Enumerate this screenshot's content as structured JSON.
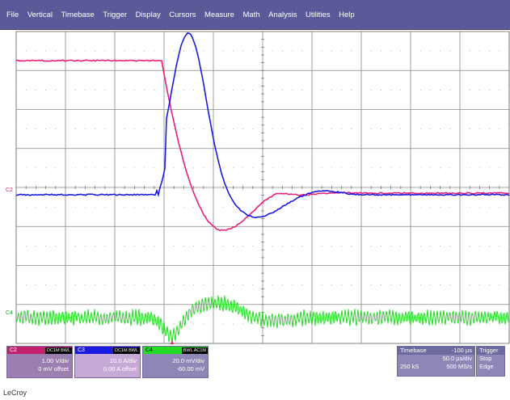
{
  "menu": [
    "File",
    "Vertical",
    "Timebase",
    "Trigger",
    "Display",
    "Cursors",
    "Measure",
    "Math",
    "Analysis",
    "Utilities",
    "Help"
  ],
  "colors": {
    "c2": "#e8207a",
    "c3": "#1a1ae0",
    "c4": "#22dd22",
    "panel": "#8d87b6",
    "menubar": "#5a5a98"
  },
  "markers": {
    "c2_label": "C2",
    "c4_label": "C4",
    "trigger": "▲"
  },
  "channels": [
    {
      "name": "C2",
      "color": "#e8207a",
      "tag": "DC1M BWL",
      "line1": "1.00 V/div",
      "line2": "0 mV offset"
    },
    {
      "name": "C3",
      "color": "#1a1ae0",
      "tag": "DC1M BWL",
      "line1": "20.0 A/div",
      "line2": "0.00 A offset"
    },
    {
      "name": "C4",
      "color": "#22dd22",
      "tag": "BWL AC1M",
      "line1": "20.0 mV/div",
      "line2": "-60.00 mV"
    }
  ],
  "timebase": {
    "label": "Timebase",
    "delay": "-100 µs",
    "per_div": "50.0 µs/div",
    "samples": "250 kS",
    "rate": "500 MS/s"
  },
  "trigger": {
    "label": "Trigger",
    "mode": "Stop",
    "type": "Edge"
  },
  "footer": "LeCroy"
}
